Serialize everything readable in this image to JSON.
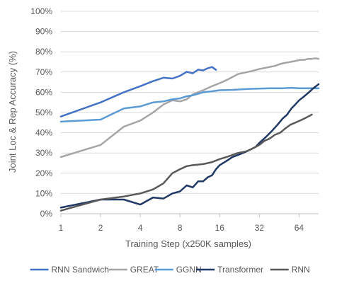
{
  "chart_data": {
    "type": "line",
    "title": "",
    "xlabel": "Training Step (x250K samples)",
    "ylabel": "Joint Loc & Rep Accuracy (%)",
    "x_scale": "log2",
    "xlim": [
      1,
      90
    ],
    "ylim": [
      0,
      1
    ],
    "x_ticks": [
      {
        "value": 1,
        "label": "1"
      },
      {
        "value": 2,
        "label": "2"
      },
      {
        "value": 4,
        "label": "4"
      },
      {
        "value": 8,
        "label": "8"
      },
      {
        "value": 16,
        "label": "16"
      },
      {
        "value": 32,
        "label": "32"
      },
      {
        "value": 64,
        "label": "64"
      }
    ],
    "y_ticks": [
      {
        "value": 0,
        "label": "0%"
      },
      {
        "value": 0.1,
        "label": "10%"
      },
      {
        "value": 0.2,
        "label": "20%"
      },
      {
        "value": 0.3,
        "label": "30%"
      },
      {
        "value": 0.4,
        "label": "40%"
      },
      {
        "value": 0.5,
        "label": "50%"
      },
      {
        "value": 0.6,
        "label": "60%"
      },
      {
        "value": 0.7,
        "label": "70%"
      },
      {
        "value": 0.8,
        "label": "80%"
      },
      {
        "value": 0.9,
        "label": "90%"
      },
      {
        "value": 1.0,
        "label": "100%"
      }
    ],
    "grid": "horizontal",
    "legend_position": "bottom",
    "series": [
      {
        "name": "RNN Sandwich",
        "color": "#4472c4",
        "points": [
          [
            1,
            0.48
          ],
          [
            2,
            0.55
          ],
          [
            3,
            0.6
          ],
          [
            4,
            0.63
          ],
          [
            5,
            0.655
          ],
          [
            6,
            0.672
          ],
          [
            7,
            0.668
          ],
          [
            8,
            0.681
          ],
          [
            9,
            0.701
          ],
          [
            10,
            0.694
          ],
          [
            11,
            0.712
          ],
          [
            12,
            0.708
          ],
          [
            13,
            0.719
          ],
          [
            14,
            0.725
          ],
          [
            15,
            0.711
          ]
        ]
      },
      {
        "name": "GREAT",
        "color": "#a5a5a5",
        "points": [
          [
            1,
            0.28
          ],
          [
            2,
            0.34
          ],
          [
            3,
            0.43
          ],
          [
            4,
            0.46
          ],
          [
            5,
            0.5
          ],
          [
            6,
            0.54
          ],
          [
            7,
            0.56
          ],
          [
            8,
            0.555
          ],
          [
            9,
            0.565
          ],
          [
            10,
            0.59
          ],
          [
            12,
            0.61
          ],
          [
            14,
            0.63
          ],
          [
            16,
            0.645
          ],
          [
            18,
            0.66
          ],
          [
            20,
            0.675
          ],
          [
            22,
            0.69
          ],
          [
            24,
            0.695
          ],
          [
            26,
            0.7
          ],
          [
            28,
            0.705
          ],
          [
            30,
            0.71
          ],
          [
            32,
            0.715
          ],
          [
            35,
            0.72
          ],
          [
            38,
            0.725
          ],
          [
            42,
            0.73
          ],
          [
            46,
            0.74
          ],
          [
            50,
            0.745
          ],
          [
            55,
            0.75
          ],
          [
            60,
            0.755
          ],
          [
            65,
            0.76
          ],
          [
            70,
            0.76
          ],
          [
            75,
            0.765
          ],
          [
            80,
            0.765
          ],
          [
            85,
            0.768
          ],
          [
            90,
            0.765
          ]
        ]
      },
      {
        "name": "GGNN",
        "color": "#5b9bd5",
        "points": [
          [
            1,
            0.455
          ],
          [
            2,
            0.465
          ],
          [
            3,
            0.52
          ],
          [
            4,
            0.53
          ],
          [
            5,
            0.55
          ],
          [
            6,
            0.555
          ],
          [
            7,
            0.565
          ],
          [
            8,
            0.57
          ],
          [
            9,
            0.58
          ],
          [
            10,
            0.585
          ],
          [
            12,
            0.6
          ],
          [
            14,
            0.605
          ],
          [
            16,
            0.61
          ],
          [
            20,
            0.612
          ],
          [
            24,
            0.615
          ],
          [
            28,
            0.617
          ],
          [
            32,
            0.618
          ],
          [
            40,
            0.62
          ],
          [
            48,
            0.62
          ],
          [
            56,
            0.622
          ],
          [
            64,
            0.62
          ],
          [
            72,
            0.62
          ],
          [
            80,
            0.62
          ],
          [
            90,
            0.62
          ]
        ]
      },
      {
        "name": "Transformer",
        "color": "#203864",
        "points": [
          [
            1,
            0.03
          ],
          [
            2,
            0.07
          ],
          [
            3,
            0.07
          ],
          [
            4,
            0.045
          ],
          [
            5,
            0.08
          ],
          [
            6,
            0.075
          ],
          [
            7,
            0.1
          ],
          [
            8,
            0.11
          ],
          [
            9,
            0.14
          ],
          [
            10,
            0.13
          ],
          [
            11,
            0.16
          ],
          [
            12,
            0.16
          ],
          [
            13,
            0.18
          ],
          [
            14,
            0.19
          ],
          [
            15,
            0.22
          ],
          [
            16,
            0.24
          ],
          [
            18,
            0.26
          ],
          [
            20,
            0.28
          ],
          [
            22,
            0.29
          ],
          [
            24,
            0.3
          ],
          [
            26,
            0.31
          ],
          [
            28,
            0.32
          ],
          [
            30,
            0.33
          ],
          [
            32,
            0.35
          ],
          [
            36,
            0.38
          ],
          [
            40,
            0.41
          ],
          [
            44,
            0.44
          ],
          [
            48,
            0.47
          ],
          [
            52,
            0.49
          ],
          [
            56,
            0.52
          ],
          [
            60,
            0.54
          ],
          [
            64,
            0.56
          ],
          [
            70,
            0.58
          ],
          [
            76,
            0.6
          ],
          [
            82,
            0.62
          ],
          [
            90,
            0.64
          ]
        ]
      },
      {
        "name": "RNN",
        "color": "#595959",
        "points": [
          [
            1,
            0.015
          ],
          [
            2,
            0.07
          ],
          [
            3,
            0.085
          ],
          [
            4,
            0.1
          ],
          [
            5,
            0.12
          ],
          [
            6,
            0.15
          ],
          [
            7,
            0.2
          ],
          [
            8,
            0.22
          ],
          [
            9,
            0.235
          ],
          [
            10,
            0.24
          ],
          [
            12,
            0.245
          ],
          [
            14,
            0.255
          ],
          [
            16,
            0.27
          ],
          [
            18,
            0.28
          ],
          [
            20,
            0.29
          ],
          [
            22,
            0.3
          ],
          [
            24,
            0.305
          ],
          [
            26,
            0.31
          ],
          [
            28,
            0.32
          ],
          [
            30,
            0.33
          ],
          [
            32,
            0.34
          ],
          [
            35,
            0.36
          ],
          [
            38,
            0.37
          ],
          [
            42,
            0.39
          ],
          [
            46,
            0.4
          ],
          [
            50,
            0.42
          ],
          [
            55,
            0.44
          ],
          [
            60,
            0.45
          ],
          [
            65,
            0.46
          ],
          [
            70,
            0.47
          ],
          [
            75,
            0.48
          ],
          [
            80,
            0.49
          ]
        ]
      }
    ]
  }
}
